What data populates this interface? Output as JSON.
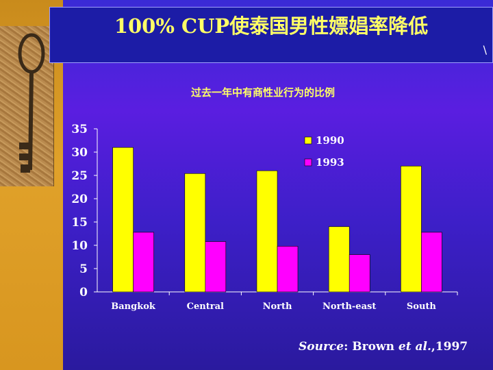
{
  "title": "100% CUP使泰国男性嫖娼率降低",
  "corner_mark": "\\",
  "source": {
    "label": "Source",
    "text": ": Brown ",
    "etal": "et al.",
    "year": ",1997"
  },
  "colors": {
    "s1990": "#ffff00",
    "s1993": "#ff00ff",
    "axis": "#ffffff",
    "title": "#ffff66"
  },
  "chart_data": {
    "type": "bar",
    "title": "过去一年中有商性业行为的比例",
    "categories": [
      "Bangkok",
      "Central",
      "North",
      "North-east",
      "South"
    ],
    "series": [
      {
        "name": "1990",
        "values": [
          31,
          25.4,
          26,
          14,
          27
        ]
      },
      {
        "name": "1993",
        "values": [
          12.8,
          10.8,
          9.8,
          8,
          12.8
        ]
      }
    ],
    "yticks": [
      "0",
      "5",
      "10",
      "15",
      "20",
      "25",
      "30",
      "35"
    ],
    "ylim": [
      0,
      35
    ],
    "grid": false,
    "legend": "top-right"
  }
}
